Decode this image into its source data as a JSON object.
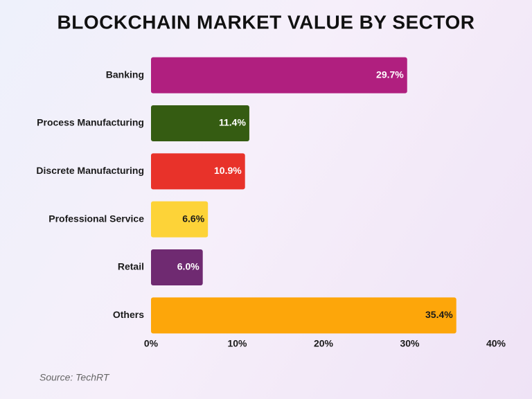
{
  "chart_data": {
    "type": "hbar",
    "title": "BLOCKCHAIN MARKET VALUE BY SECTOR",
    "categories": [
      "Banking",
      "Process Manufacturing",
      "Discrete Manufacturing",
      "Professional Service",
      "Retail",
      "Others"
    ],
    "values": [
      29.7,
      11.4,
      10.9,
      6.6,
      6.0,
      35.4
    ],
    "value_labels": [
      "29.7%",
      "11.4%",
      "10.9%",
      "6.6%",
      "6.0%",
      "35.4%"
    ],
    "colors": [
      "#b01f7f",
      "#355c12",
      "#e8322a",
      "#fdd338",
      "#6f2a71",
      "#fda60a"
    ],
    "xlim": [
      0,
      40
    ],
    "xticks": [
      {
        "value": 0,
        "label": "0%"
      },
      {
        "value": 10,
        "label": "10%"
      },
      {
        "value": 20,
        "label": "20%"
      },
      {
        "value": 30,
        "label": "30%"
      },
      {
        "value": 40,
        "label": "40%"
      }
    ],
    "grid": false,
    "source": "Source: TechRT"
  }
}
